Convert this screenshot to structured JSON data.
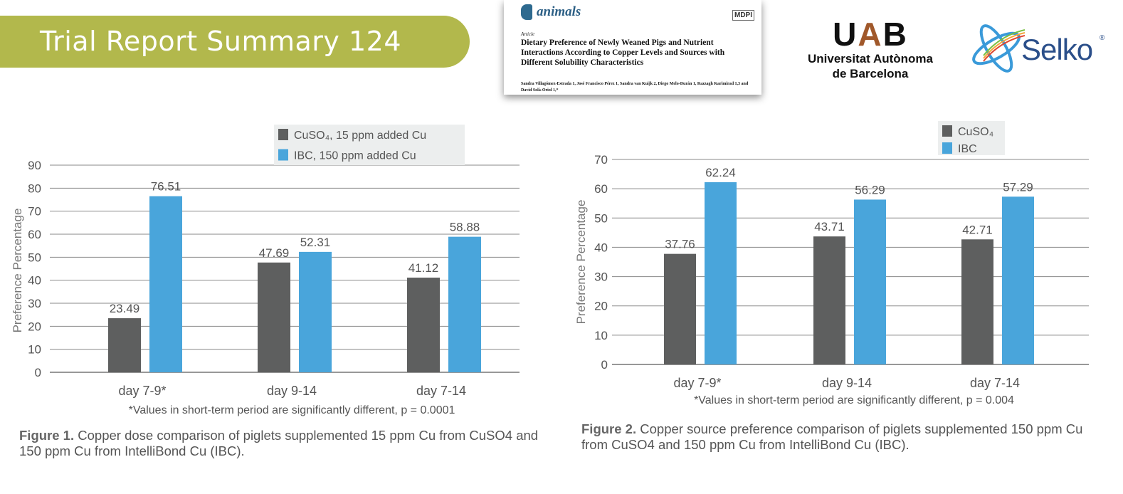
{
  "header": {
    "title": "Trial Report Summary 124"
  },
  "paper": {
    "journal": "animals",
    "publisher": "MDPI",
    "kind": "Article",
    "title": "Dietary Preference of Newly Weaned Pigs and Nutrient Interactions According to Copper Levels and Sources with Different Solubility Characteristics",
    "authors": "Sandra Villagómez-Estrada 1, José Francisco Pérez 1, Sandra van Kuijk 2, Diego Melo-Durán 1, Razzagh Karimirad 1,3 and David Solà-Oriol 1,*"
  },
  "logos": {
    "uab_mark": "UAB",
    "uab_line1": "Universitat Autònoma",
    "uab_line2": "de Barcelona",
    "selko": "Selko",
    "selko_reg": "®"
  },
  "colors": {
    "cuso4": "#5e5f5f",
    "ibc": "#49a5db",
    "banner": "#b2b84c",
    "grid": "#8a8a8a"
  },
  "chart_data": [
    {
      "type": "bar",
      "ylabel": "Preference Percentage",
      "ylim": [
        0,
        90
      ],
      "yticks": [
        0,
        10,
        20,
        30,
        40,
        50,
        60,
        70,
        80,
        90
      ],
      "categories": [
        "day 7-9*",
        "day 9-14",
        "day 7-14"
      ],
      "series": [
        {
          "name": "CuSO4, 15 ppm added Cu",
          "values": [
            23.49,
            47.69,
            41.12
          ]
        },
        {
          "name": "IBC, 150 ppm added Cu",
          "values": [
            76.51,
            52.31,
            58.88
          ]
        }
      ],
      "legend": "top-right",
      "grid": true,
      "footnote": "*Values in short-term period are significantly different, p = 0.0001"
    },
    {
      "type": "bar",
      "ylabel": "Preference Percentage",
      "ylim": [
        0,
        70
      ],
      "yticks": [
        0,
        10,
        20,
        30,
        40,
        50,
        60,
        70
      ],
      "categories": [
        "day 7-9*",
        "day 9-14",
        "day 7-14"
      ],
      "series": [
        {
          "name": "CuSO4",
          "values": [
            37.76,
            43.71,
            42.71
          ]
        },
        {
          "name": "IBC",
          "values": [
            62.24,
            56.29,
            57.29
          ]
        }
      ],
      "legend": "top-right",
      "grid": true,
      "footnote": "*Values in short-term period are significantly different, p = 0.004"
    }
  ],
  "captions": [
    {
      "label": "Figure 1.",
      "text": "Copper dose comparison of piglets supplemented 15 ppm Cu from CuSO4 and 150 ppm Cu from IntelliBond Cu (IBC)."
    },
    {
      "label": "Figure 2.",
      "text": "Copper source preference comparison of piglets supplemented 150 ppm Cu from CuSO4 and 150 ppm Cu from IntelliBond Cu (IBC)."
    }
  ]
}
